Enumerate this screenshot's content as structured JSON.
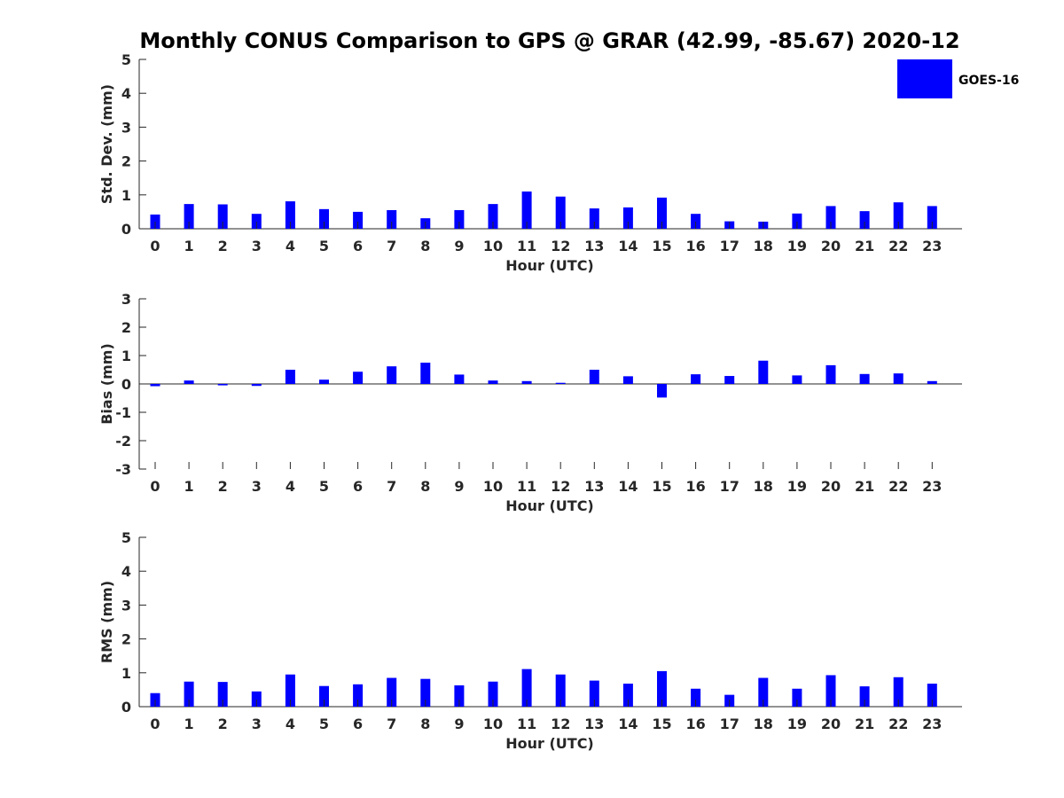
{
  "title": "Monthly CONUS Comparison to GPS @ GRAR (42.99, -85.67) 2020-12",
  "legend": {
    "label": "GOES-16",
    "color": "#0000ff",
    "placement": "top-right"
  },
  "chart_data": [
    {
      "type": "bar",
      "xlabel": "Hour (UTC)",
      "ylabel": "Std. Dev. (mm)",
      "ylim": [
        0,
        5
      ],
      "yticks": [
        "0",
        "1",
        "2",
        "3",
        "4",
        "5"
      ],
      "categories": [
        "0",
        "1",
        "2",
        "3",
        "4",
        "5",
        "6",
        "7",
        "8",
        "9",
        "10",
        "11",
        "12",
        "13",
        "14",
        "15",
        "16",
        "17",
        "18",
        "19",
        "20",
        "21",
        "22",
        "23"
      ],
      "series": [
        {
          "name": "GOES-16",
          "color": "#0000ff",
          "values": [
            0.42,
            0.73,
            0.72,
            0.44,
            0.81,
            0.58,
            0.5,
            0.55,
            0.31,
            0.55,
            0.73,
            1.1,
            0.95,
            0.6,
            0.63,
            0.92,
            0.44,
            0.22,
            0.21,
            0.45,
            0.67,
            0.52,
            0.78,
            0.67
          ]
        }
      ]
    },
    {
      "type": "bar",
      "xlabel": "Hour (UTC)",
      "ylabel": "Bias (mm)",
      "ylim": [
        -3,
        3
      ],
      "yticks": [
        "-3",
        "-2",
        "-1",
        "0",
        "1",
        "2",
        "3"
      ],
      "categories": [
        "0",
        "1",
        "2",
        "3",
        "4",
        "5",
        "6",
        "7",
        "8",
        "9",
        "10",
        "11",
        "12",
        "13",
        "14",
        "15",
        "16",
        "17",
        "18",
        "19",
        "20",
        "21",
        "22",
        "23"
      ],
      "series": [
        {
          "name": "GOES-16",
          "color": "#0000ff",
          "values": [
            -0.08,
            0.12,
            -0.05,
            -0.07,
            0.5,
            0.15,
            0.43,
            0.62,
            0.75,
            0.33,
            0.12,
            0.1,
            0.04,
            0.5,
            0.27,
            -0.48,
            0.34,
            0.28,
            0.82,
            0.3,
            0.66,
            0.35,
            0.37,
            0.1
          ]
        }
      ]
    },
    {
      "type": "bar",
      "xlabel": "Hour (UTC)",
      "ylabel": "RMS (mm)",
      "ylim": [
        0,
        5
      ],
      "yticks": [
        "0",
        "1",
        "2",
        "3",
        "4",
        "5"
      ],
      "categories": [
        "0",
        "1",
        "2",
        "3",
        "4",
        "5",
        "6",
        "7",
        "8",
        "9",
        "10",
        "11",
        "12",
        "13",
        "14",
        "15",
        "16",
        "17",
        "18",
        "19",
        "20",
        "21",
        "22",
        "23"
      ],
      "series": [
        {
          "name": "GOES-16",
          "color": "#0000ff",
          "values": [
            0.4,
            0.74,
            0.73,
            0.45,
            0.95,
            0.61,
            0.66,
            0.85,
            0.82,
            0.63,
            0.74,
            1.11,
            0.95,
            0.77,
            0.68,
            1.05,
            0.53,
            0.35,
            0.85,
            0.53,
            0.93,
            0.6,
            0.87,
            0.68
          ]
        }
      ]
    }
  ]
}
